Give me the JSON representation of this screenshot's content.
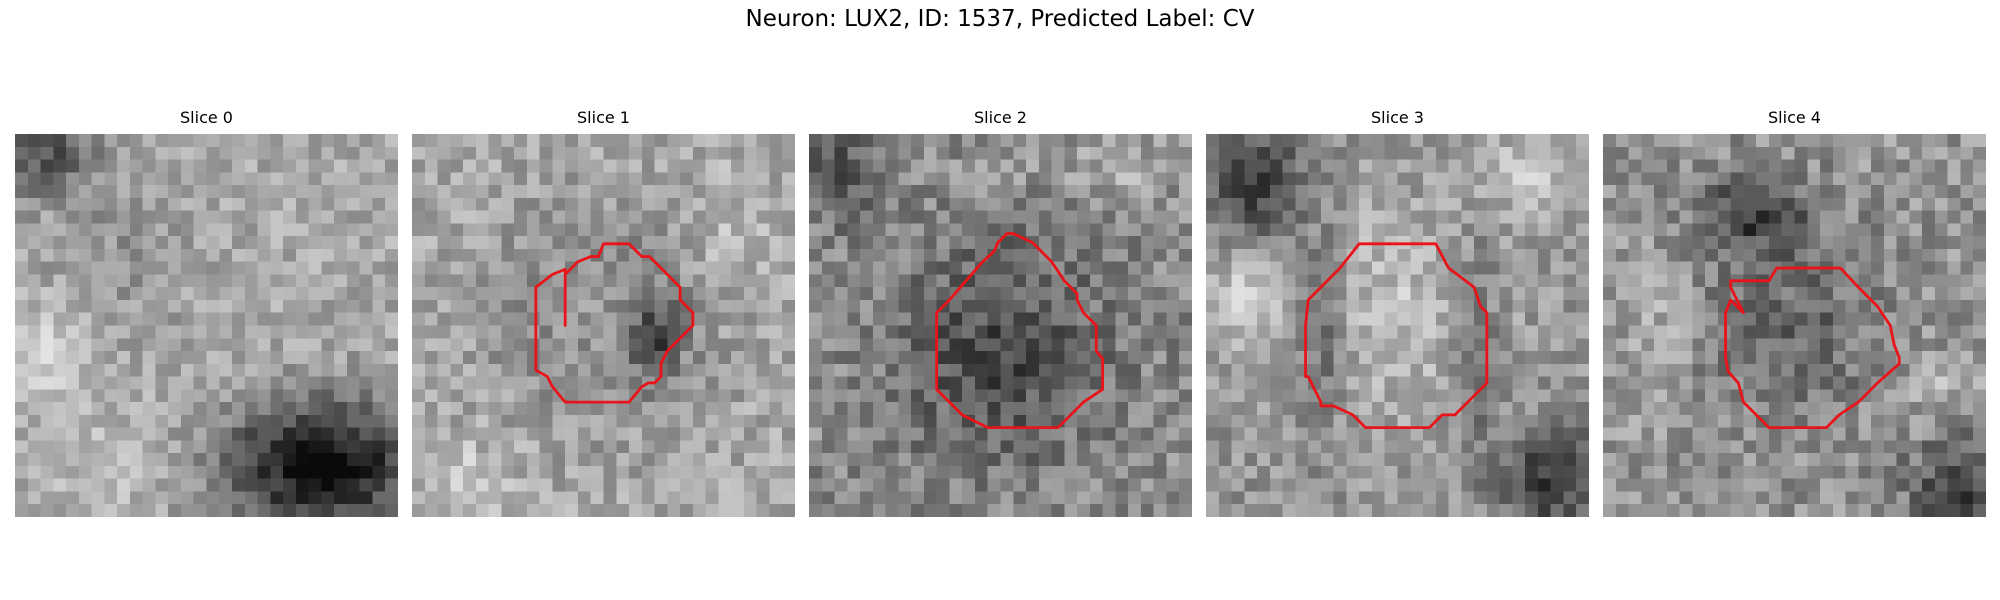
{
  "figure": {
    "title": "Neuron: LUX2, ID: 1537, Predicted Label: CV"
  },
  "colors": {
    "contour": "#e8141a",
    "background": "#ffffff"
  },
  "panels": [
    {
      "title": "Slice 0",
      "has_contour": false
    },
    {
      "title": "Slice 1",
      "has_contour": true
    },
    {
      "title": "Slice 2",
      "has_contour": true
    },
    {
      "title": "Slice 3",
      "has_contour": true
    },
    {
      "title": "Slice 4",
      "has_contour": true
    }
  ]
}
